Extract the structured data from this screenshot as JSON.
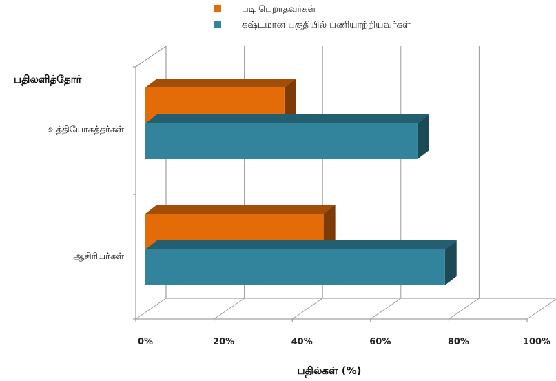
{
  "chart_data": {
    "type": "bar",
    "orientation": "horizontal",
    "style": "3d",
    "categories": [
      "உத்தியோகத்தர்கள்",
      "ஆசிரியர்கள்"
    ],
    "series": [
      {
        "name": "படி பெறாதவர்கள்",
        "color": "#e36c09",
        "values": [
          38,
          48
        ]
      },
      {
        "name": "கஷ்டமான பகுதியில் பணியாற்றியவர்கள்",
        "color": "#31849b",
        "values": [
          72,
          79
        ]
      }
    ],
    "category_axis_title": "பதிலளித்தோர்",
    "value_axis_title": "பதில்கள் (%)",
    "value_ticks": [
      "0%",
      "20%",
      "40%",
      "60%",
      "80%",
      "100%"
    ],
    "xlim": [
      0,
      100
    ],
    "grid": true,
    "legend_position": "top"
  }
}
